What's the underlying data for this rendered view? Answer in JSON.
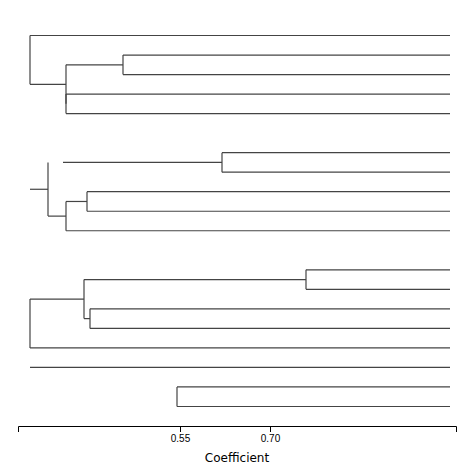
{
  "chart_data": {
    "type": "dendrogram",
    "x_label": "Coefficient",
    "color": "#444444",
    "xlim": [
      0.28,
      1.01
    ],
    "xticks": [
      0.55,
      {
        "value": 0.7,
        "label": "0.70"
      }
    ],
    "ylim": [
      0,
      21
    ],
    "tick_labels": "x",
    "leaf_end": 1.0,
    "clusters": [
      {
        "leaves": [
          {
            "y": 1,
            "x_start": 0.3
          },
          {
            "y": 2,
            "x_start": 0.455
          },
          {
            "y": 3,
            "x_start": 0.455
          },
          {
            "y": 4,
            "x_start": 0.36
          },
          {
            "y": 5,
            "x_start": 0.36
          }
        ],
        "joins": [
          {
            "type": "v",
            "x": 0.455,
            "y1": 2,
            "y2": 3
          },
          {
            "type": "h",
            "x1": 0.36,
            "x2": 0.455,
            "y": 2.5
          },
          {
            "type": "v",
            "x": 0.36,
            "y1": 4,
            "y2": 5
          },
          {
            "type": "v",
            "x": 0.36,
            "y1": 2.5,
            "y2": 4.5
          },
          {
            "type": "h",
            "x1": 0.3,
            "x2": 0.36,
            "y": 3.5
          },
          {
            "type": "v",
            "x": 0.3,
            "y1": 1.0,
            "y2": 3.5
          }
        ]
      },
      {
        "leaves": [
          {
            "y": 7,
            "x_start": 0.62
          },
          {
            "y": 8,
            "x_start": 0.62
          },
          {
            "y": 9,
            "x_start": 0.395
          },
          {
            "y": 10,
            "x_start": 0.395
          },
          {
            "y": 11,
            "x_start": 0.36
          }
        ],
        "joins": [
          {
            "type": "v",
            "x": 0.62,
            "y1": 7,
            "y2": 8
          },
          {
            "type": "h",
            "x1": 0.355,
            "x2": 0.62,
            "y": 7.5
          },
          {
            "type": "v",
            "x": 0.395,
            "y1": 9,
            "y2": 10
          },
          {
            "type": "h",
            "x1": 0.36,
            "x2": 0.395,
            "y": 9.5
          },
          {
            "type": "v",
            "x": 0.36,
            "y1": 9.5,
            "y2": 11
          },
          {
            "type": "h",
            "x1": 0.33,
            "x2": 0.36,
            "y": 10.25
          },
          {
            "type": "v",
            "x": 0.33,
            "y1": 7.5,
            "y2": 10.25
          },
          {
            "type": "h",
            "x1": 0.3,
            "x2": 0.33,
            "y": 8.875
          }
        ]
      },
      {
        "leaves": [
          {
            "y": 13,
            "x_start": 0.76
          },
          {
            "y": 14,
            "x_start": 0.76
          },
          {
            "y": 15,
            "x_start": 0.4
          },
          {
            "y": 16,
            "x_start": 0.4
          },
          {
            "y": 17,
            "x_start": 0.3
          }
        ],
        "joins": [
          {
            "type": "v",
            "x": 0.76,
            "y1": 13,
            "y2": 14
          },
          {
            "type": "h",
            "x1": 0.39,
            "x2": 0.76,
            "y": 13.5
          },
          {
            "type": "v",
            "x": 0.4,
            "y1": 15,
            "y2": 16
          },
          {
            "type": "h",
            "x1": 0.39,
            "x2": 0.4,
            "y": 15.5
          },
          {
            "type": "v",
            "x": 0.39,
            "y1": 13.5,
            "y2": 15.5
          },
          {
            "type": "h",
            "x1": 0.3,
            "x2": 0.39,
            "y": 14.5
          },
          {
            "type": "v",
            "x": 0.3,
            "y1": 14.5,
            "y2": 17
          }
        ]
      },
      {
        "leaves": [
          {
            "y": 18,
            "x_start": 0.3
          },
          {
            "y": 19,
            "x_start": 0.545
          },
          {
            "y": 20,
            "x_start": 0.545
          }
        ],
        "joins": [
          {
            "type": "v",
            "x": 0.545,
            "y1": 19,
            "y2": 20
          }
        ]
      }
    ]
  }
}
